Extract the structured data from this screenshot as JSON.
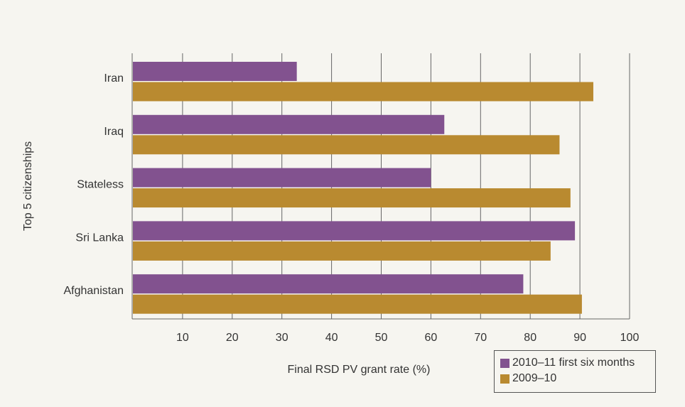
{
  "chart_data": {
    "type": "bar",
    "orientation": "horizontal",
    "title": "",
    "xlabel": "Final RSD PV grant rate (%)",
    "ylabel": "Top 5 citizenships",
    "categories": [
      "Iran",
      "Iraq",
      "Stateless",
      "Sri Lanka",
      "Afghanistan"
    ],
    "series": [
      {
        "name": "2010–11 first six months",
        "color": "#82528f",
        "values": [
          33,
          62.7,
          60,
          89,
          78.6
        ]
      },
      {
        "name": "2009–10",
        "color": "#b98a30",
        "values": [
          92.7,
          85.9,
          88.1,
          84.1,
          90.4
        ]
      }
    ],
    "xlim": [
      0,
      100
    ],
    "xticks": [
      "10",
      "20",
      "30",
      "40",
      "50",
      "60",
      "70",
      "80",
      "90",
      "100"
    ],
    "grid": true,
    "legend": "bottom-right"
  }
}
